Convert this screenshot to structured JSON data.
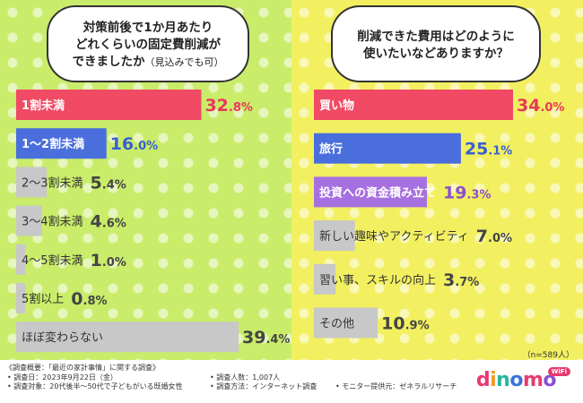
{
  "chart_data": [
    {
      "type": "bar",
      "orientation": "horizontal",
      "title": "対策前後で1か月あたりどれくらいの固定費削減ができましたか（見込みでも可）",
      "title_lines": [
        "対策前後で1か月あたり",
        "どれくらいの固定費削減が",
        "できましたか"
      ],
      "title_note": "（見込みでも可）",
      "unit": "%",
      "xlim": [
        0,
        39.4
      ],
      "categories": [
        "1割未満",
        "1〜2割未満",
        "2〜3割未満",
        "3〜4割未満",
        "4〜5割未満",
        "5割以上",
        "ほぼ変わらない"
      ],
      "values": [
        32.8,
        16.0,
        5.4,
        4.6,
        1.0,
        0.8,
        39.4
      ],
      "value_int": [
        "32",
        "16",
        "5",
        "4",
        "1",
        "0",
        "39"
      ],
      "value_dec": [
        ".8%",
        ".0%",
        ".4%",
        ".6%",
        ".0%",
        ".8%",
        ".4%"
      ],
      "colors": [
        "#f04a64",
        "#4a6fdc",
        "#c8c8c8",
        "#c8c8c8",
        "#c8c8c8",
        "#c8c8c8",
        "#c8c8c8"
      ],
      "value_colors": [
        "#e8385a",
        "#3a5fd0",
        "#444444",
        "#444444",
        "#444444",
        "#444444",
        "#444444"
      ]
    },
    {
      "type": "bar",
      "orientation": "horizontal",
      "title": "削減できた費用はどのように使いたいなどありますか？",
      "title_lines": [
        "削減できた費用はどのように",
        "使いたいなどありますか？"
      ],
      "unit": "%",
      "xlim": [
        0,
        34.0
      ],
      "categories": [
        "買い物",
        "旅行",
        "投資への資金積み立て",
        "新しい趣味やアクティビティ",
        "習い事、スキルの向上",
        "その他"
      ],
      "values": [
        34.0,
        25.1,
        19.3,
        7.0,
        3.7,
        10.9
      ],
      "value_int": [
        "34",
        "25",
        "19",
        "7",
        "3",
        "10"
      ],
      "value_dec": [
        ".0%",
        ".1%",
        ".3%",
        ".0%",
        ".7%",
        ".9%"
      ],
      "colors": [
        "#f04a64",
        "#4a6fdc",
        "#a770e0",
        "#c8c8c8",
        "#c8c8c8",
        "#c8c8c8"
      ],
      "value_colors": [
        "#e8385a",
        "#3a5fd0",
        "#8a4fd0",
        "#444444",
        "#444444",
        "#444444"
      ],
      "sample_note": "（n=589人）"
    }
  ],
  "footer": {
    "summary": "《調査概要：「最近の家計事情」に関する調査》",
    "date": "• 調査日：2023年9月22日（金）",
    "target": "• 調査対象：20代後半〜50代で子どもがいる既婚女性",
    "count": "• 調査人数：1,007人",
    "method": "• 調査方法：インターネット調査",
    "provider": "• モニター提供元：ゼネラルリサーチ"
  },
  "brand": {
    "logo": "dinomo",
    "badge": "WiFi",
    "logo_colors": [
      "#e8386f",
      "#f39a1e",
      "#2bb3a0",
      "#3a72d8",
      "#e8386f",
      "#8a4fd0"
    ]
  }
}
